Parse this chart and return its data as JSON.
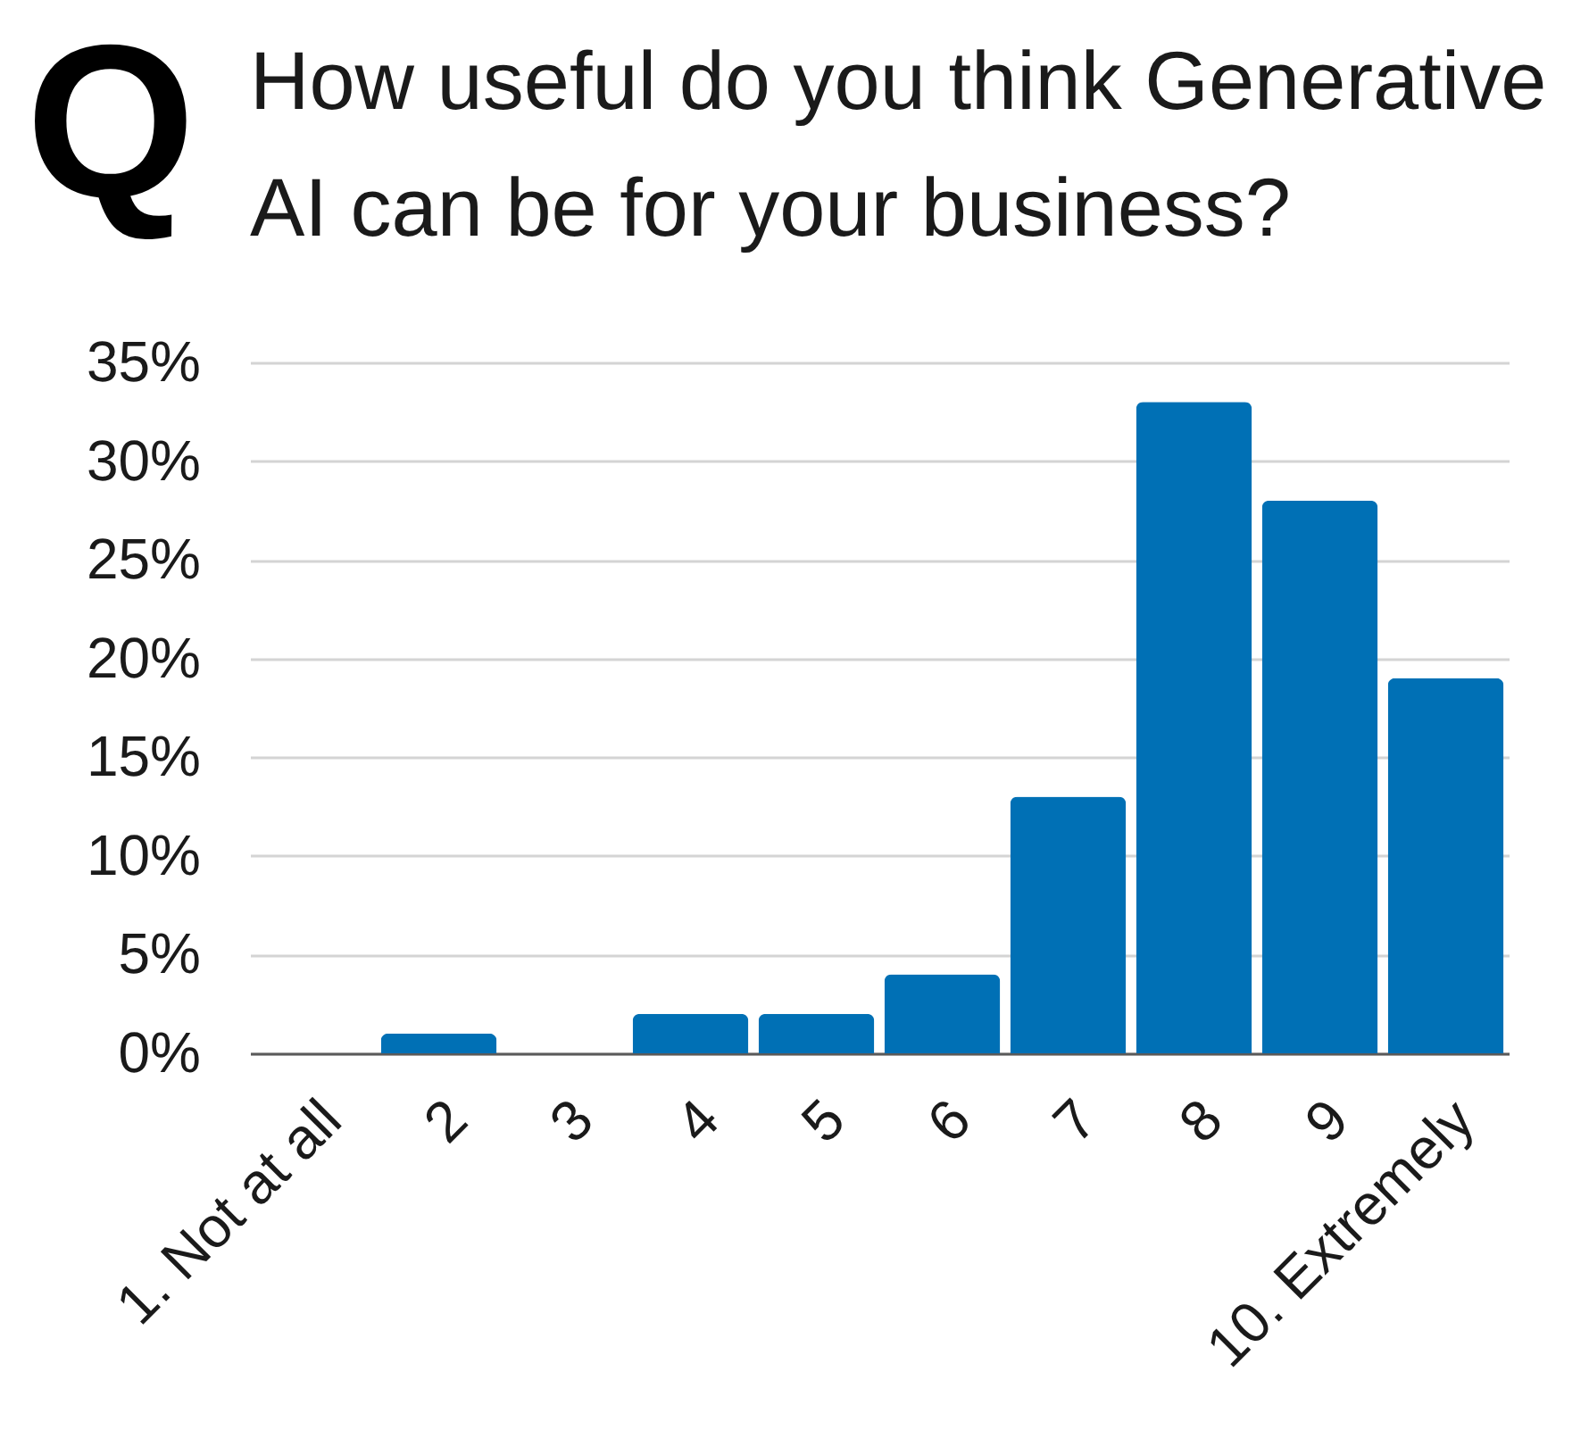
{
  "chart_data": {
    "type": "bar",
    "title": "How useful do you think Generative AI can be for your business?",
    "annotations": [
      "Q"
    ],
    "categories": [
      "1. Not at all",
      "2",
      "3",
      "4",
      "5",
      "6",
      "7",
      "8",
      "9",
      "10. Extremely"
    ],
    "values": [
      0,
      1,
      0,
      2,
      2,
      4,
      13,
      33,
      28,
      19
    ],
    "color": "#0070b5",
    "ylim": [
      0,
      35
    ],
    "yticks": [
      {
        "value": 0,
        "label": "0%"
      },
      {
        "value": 5,
        "label": "5%"
      },
      {
        "value": 10,
        "label": "10%"
      },
      {
        "value": 15,
        "label": "15%"
      },
      {
        "value": 20,
        "label": "20%"
      },
      {
        "value": 25,
        "label": "25%"
      },
      {
        "value": 30,
        "label": "30%"
      },
      {
        "value": 35,
        "label": "35%"
      }
    ],
    "grid": "y"
  }
}
